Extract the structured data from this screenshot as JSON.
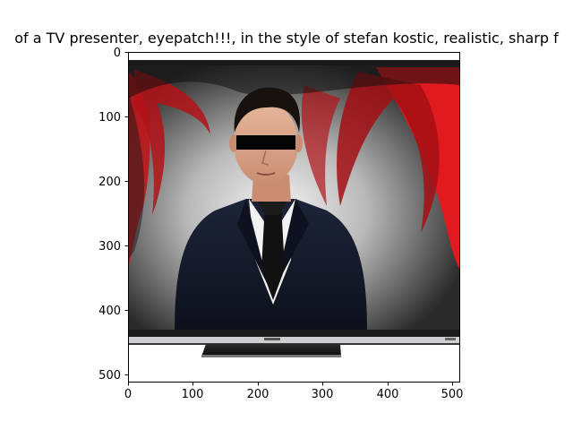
{
  "figure": {
    "title": "of a TV presenter,  eyepatch!!!, in the style of stefan kostic, realistic, sharp f",
    "x_ticks": [
      "0",
      "100",
      "200",
      "300",
      "400",
      "500"
    ],
    "y_ticks": [
      "0",
      "100",
      "200",
      "300",
      "400",
      "500"
    ]
  },
  "image": {
    "subject": "man in dark suit behind a flat-screen TV frame with a black bar over his eyes",
    "background_color": "#c81a1e",
    "suit_color": "#141a2a",
    "shirt_color": "#ffffff",
    "tie_color": "#111111",
    "tv_frame_color": "#1a1a1a"
  }
}
